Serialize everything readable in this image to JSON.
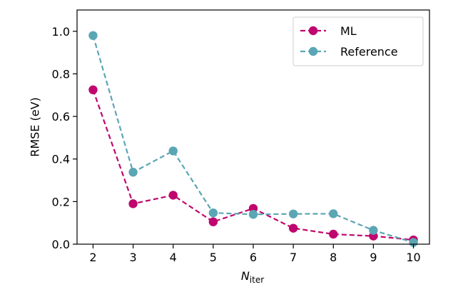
{
  "chart_data": {
    "type": "line",
    "title": "",
    "xlabel": {
      "main": "N",
      "sub": "iter"
    },
    "ylabel": "RMSE (eV)",
    "x": [
      2,
      3,
      4,
      5,
      6,
      7,
      8,
      9,
      10
    ],
    "xlim": [
      1.6,
      10.4
    ],
    "ylim": [
      0.0,
      1.1
    ],
    "xticks": [
      "2",
      "3",
      "4",
      "5",
      "6",
      "7",
      "8",
      "9",
      "10"
    ],
    "yticks": [
      "0.0",
      "0.2",
      "0.4",
      "0.6",
      "0.8",
      "1.0"
    ],
    "grid": false,
    "legend_position": "top-right",
    "series": [
      {
        "name": "ML",
        "color": "#c0066e",
        "line_style": "dashed",
        "marker": "circle",
        "values": [
          0.725,
          0.19,
          0.23,
          0.105,
          0.168,
          0.075,
          0.047,
          0.038,
          0.02
        ]
      },
      {
        "name": "Reference",
        "color": "#5ba6b4",
        "line_style": "dashed",
        "marker": "circle",
        "values": [
          0.98,
          0.338,
          0.438,
          0.147,
          0.14,
          0.142,
          0.143,
          0.065,
          0.008
        ]
      }
    ]
  }
}
